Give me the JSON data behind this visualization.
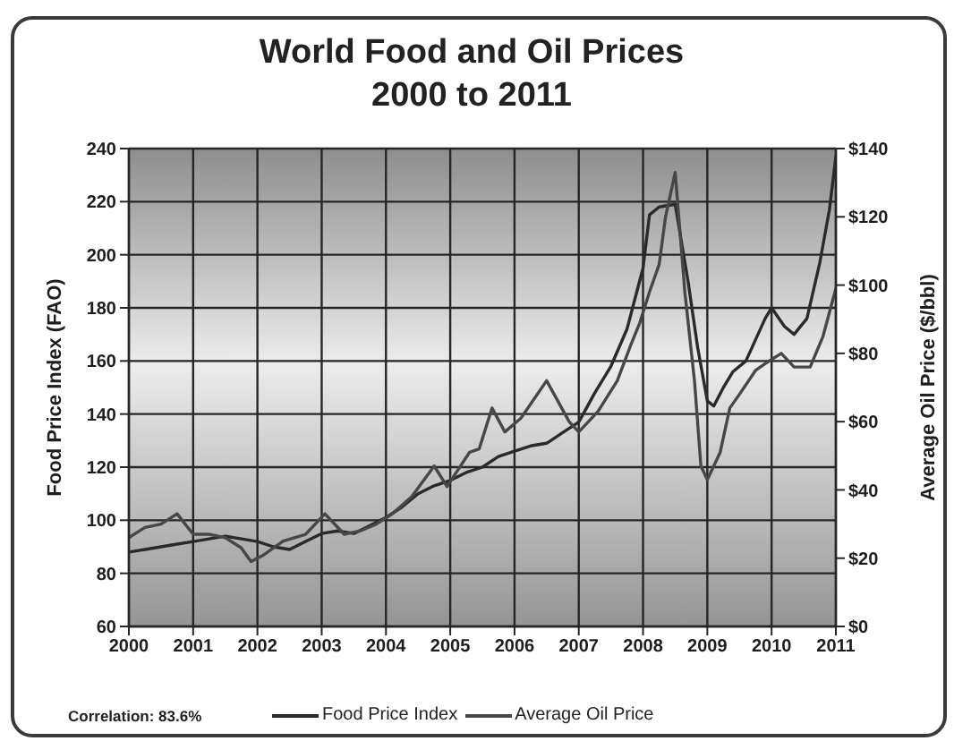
{
  "chart_data": {
    "type": "line",
    "title": "World Food and Oil Prices",
    "subtitle": "2000 to 2011",
    "ylabel": "Food Price Index (FAO)",
    "y2label": "Average Oil Price ($/bbl)",
    "annotations": [
      "Correlation: 83.6%"
    ],
    "xlim": [
      2000,
      2011
    ],
    "xticks": [
      2000,
      2001,
      2002,
      2003,
      2004,
      2005,
      2006,
      2007,
      2008,
      2009,
      2010,
      2011
    ],
    "ylim": [
      60,
      240
    ],
    "yticks": [
      60,
      80,
      100,
      120,
      140,
      160,
      180,
      200,
      220,
      240
    ],
    "y2lim": [
      0,
      140
    ],
    "y2ticks": [
      {
        "value": 0,
        "label": "$0"
      },
      {
        "value": 20,
        "label": "$20"
      },
      {
        "value": 40,
        "label": "$40"
      },
      {
        "value": 60,
        "label": "$60"
      },
      {
        "value": 80,
        "label": "$80"
      },
      {
        "value": 100,
        "label": "$100"
      },
      {
        "value": 120,
        "label": "$120"
      },
      {
        "value": 140,
        "label": "$140"
      }
    ],
    "grid": true,
    "legend": "bottom",
    "series": [
      {
        "name": "Food Price Index",
        "color": "#2a2a2a",
        "x": [
          2000,
          2000.25,
          2000.5,
          2000.75,
          2001,
          2001.25,
          2001.5,
          2001.75,
          2002,
          2002.25,
          2002.5,
          2002.75,
          2003,
          2003.25,
          2003.5,
          2003.75,
          2004,
          2004.25,
          2004.5,
          2004.75,
          2005,
          2005.25,
          2005.5,
          2005.75,
          2006,
          2006.25,
          2006.5,
          2006.75,
          2007,
          2007.25,
          2007.5,
          2007.75,
          2008,
          2008.1,
          2008.25,
          2008.5,
          2008.7,
          2008.85,
          2009,
          2009.1,
          2009.25,
          2009.4,
          2009.6,
          2009.75,
          2009.9,
          2010,
          2010.2,
          2010.35,
          2010.55,
          2010.75,
          2010.9,
          2011
        ],
        "values": [
          88,
          89,
          90,
          91,
          92,
          93,
          94,
          93,
          92,
          90,
          89,
          92,
          95,
          96,
          95,
          98,
          101,
          105,
          110,
          113,
          115,
          118,
          120,
          124,
          126,
          128,
          129,
          133,
          137,
          148,
          158,
          172,
          195,
          215,
          218,
          219,
          190,
          165,
          145,
          143,
          150,
          156,
          160,
          168,
          176,
          180,
          173,
          170,
          176,
          197,
          217,
          237
        ]
      },
      {
        "name": "Average Oil Price",
        "color": "#474747",
        "axis": "y2",
        "x": [
          2000,
          2000.25,
          2000.5,
          2000.75,
          2001,
          2001.25,
          2001.5,
          2001.75,
          2001.9,
          2002.1,
          2002.4,
          2002.75,
          2003.05,
          2003.35,
          2003.6,
          2003.85,
          2004.1,
          2004.4,
          2004.75,
          2004.95,
          2005.3,
          2005.45,
          2005.65,
          2005.85,
          2006.1,
          2006.5,
          2006.85,
          2007,
          2007.3,
          2007.6,
          2007.8,
          2007.95,
          2008.1,
          2008.25,
          2008.35,
          2008.5,
          2008.65,
          2008.8,
          2008.9,
          2009,
          2009.2,
          2009.35,
          2009.5,
          2009.75,
          2009.9,
          2010.15,
          2010.35,
          2010.6,
          2010.8,
          2011
        ],
        "values": [
          26,
          29,
          30,
          33,
          27,
          27,
          26,
          23,
          19,
          21,
          25,
          27,
          33,
          27,
          28,
          30,
          33,
          38,
          47,
          41,
          51,
          52,
          64,
          57,
          61,
          72,
          60,
          57,
          63,
          72,
          82,
          89,
          98,
          106,
          120,
          133,
          98,
          72,
          47,
          43,
          51,
          64,
          68,
          75,
          77,
          80,
          76,
          76,
          85,
          99
        ]
      }
    ]
  }
}
